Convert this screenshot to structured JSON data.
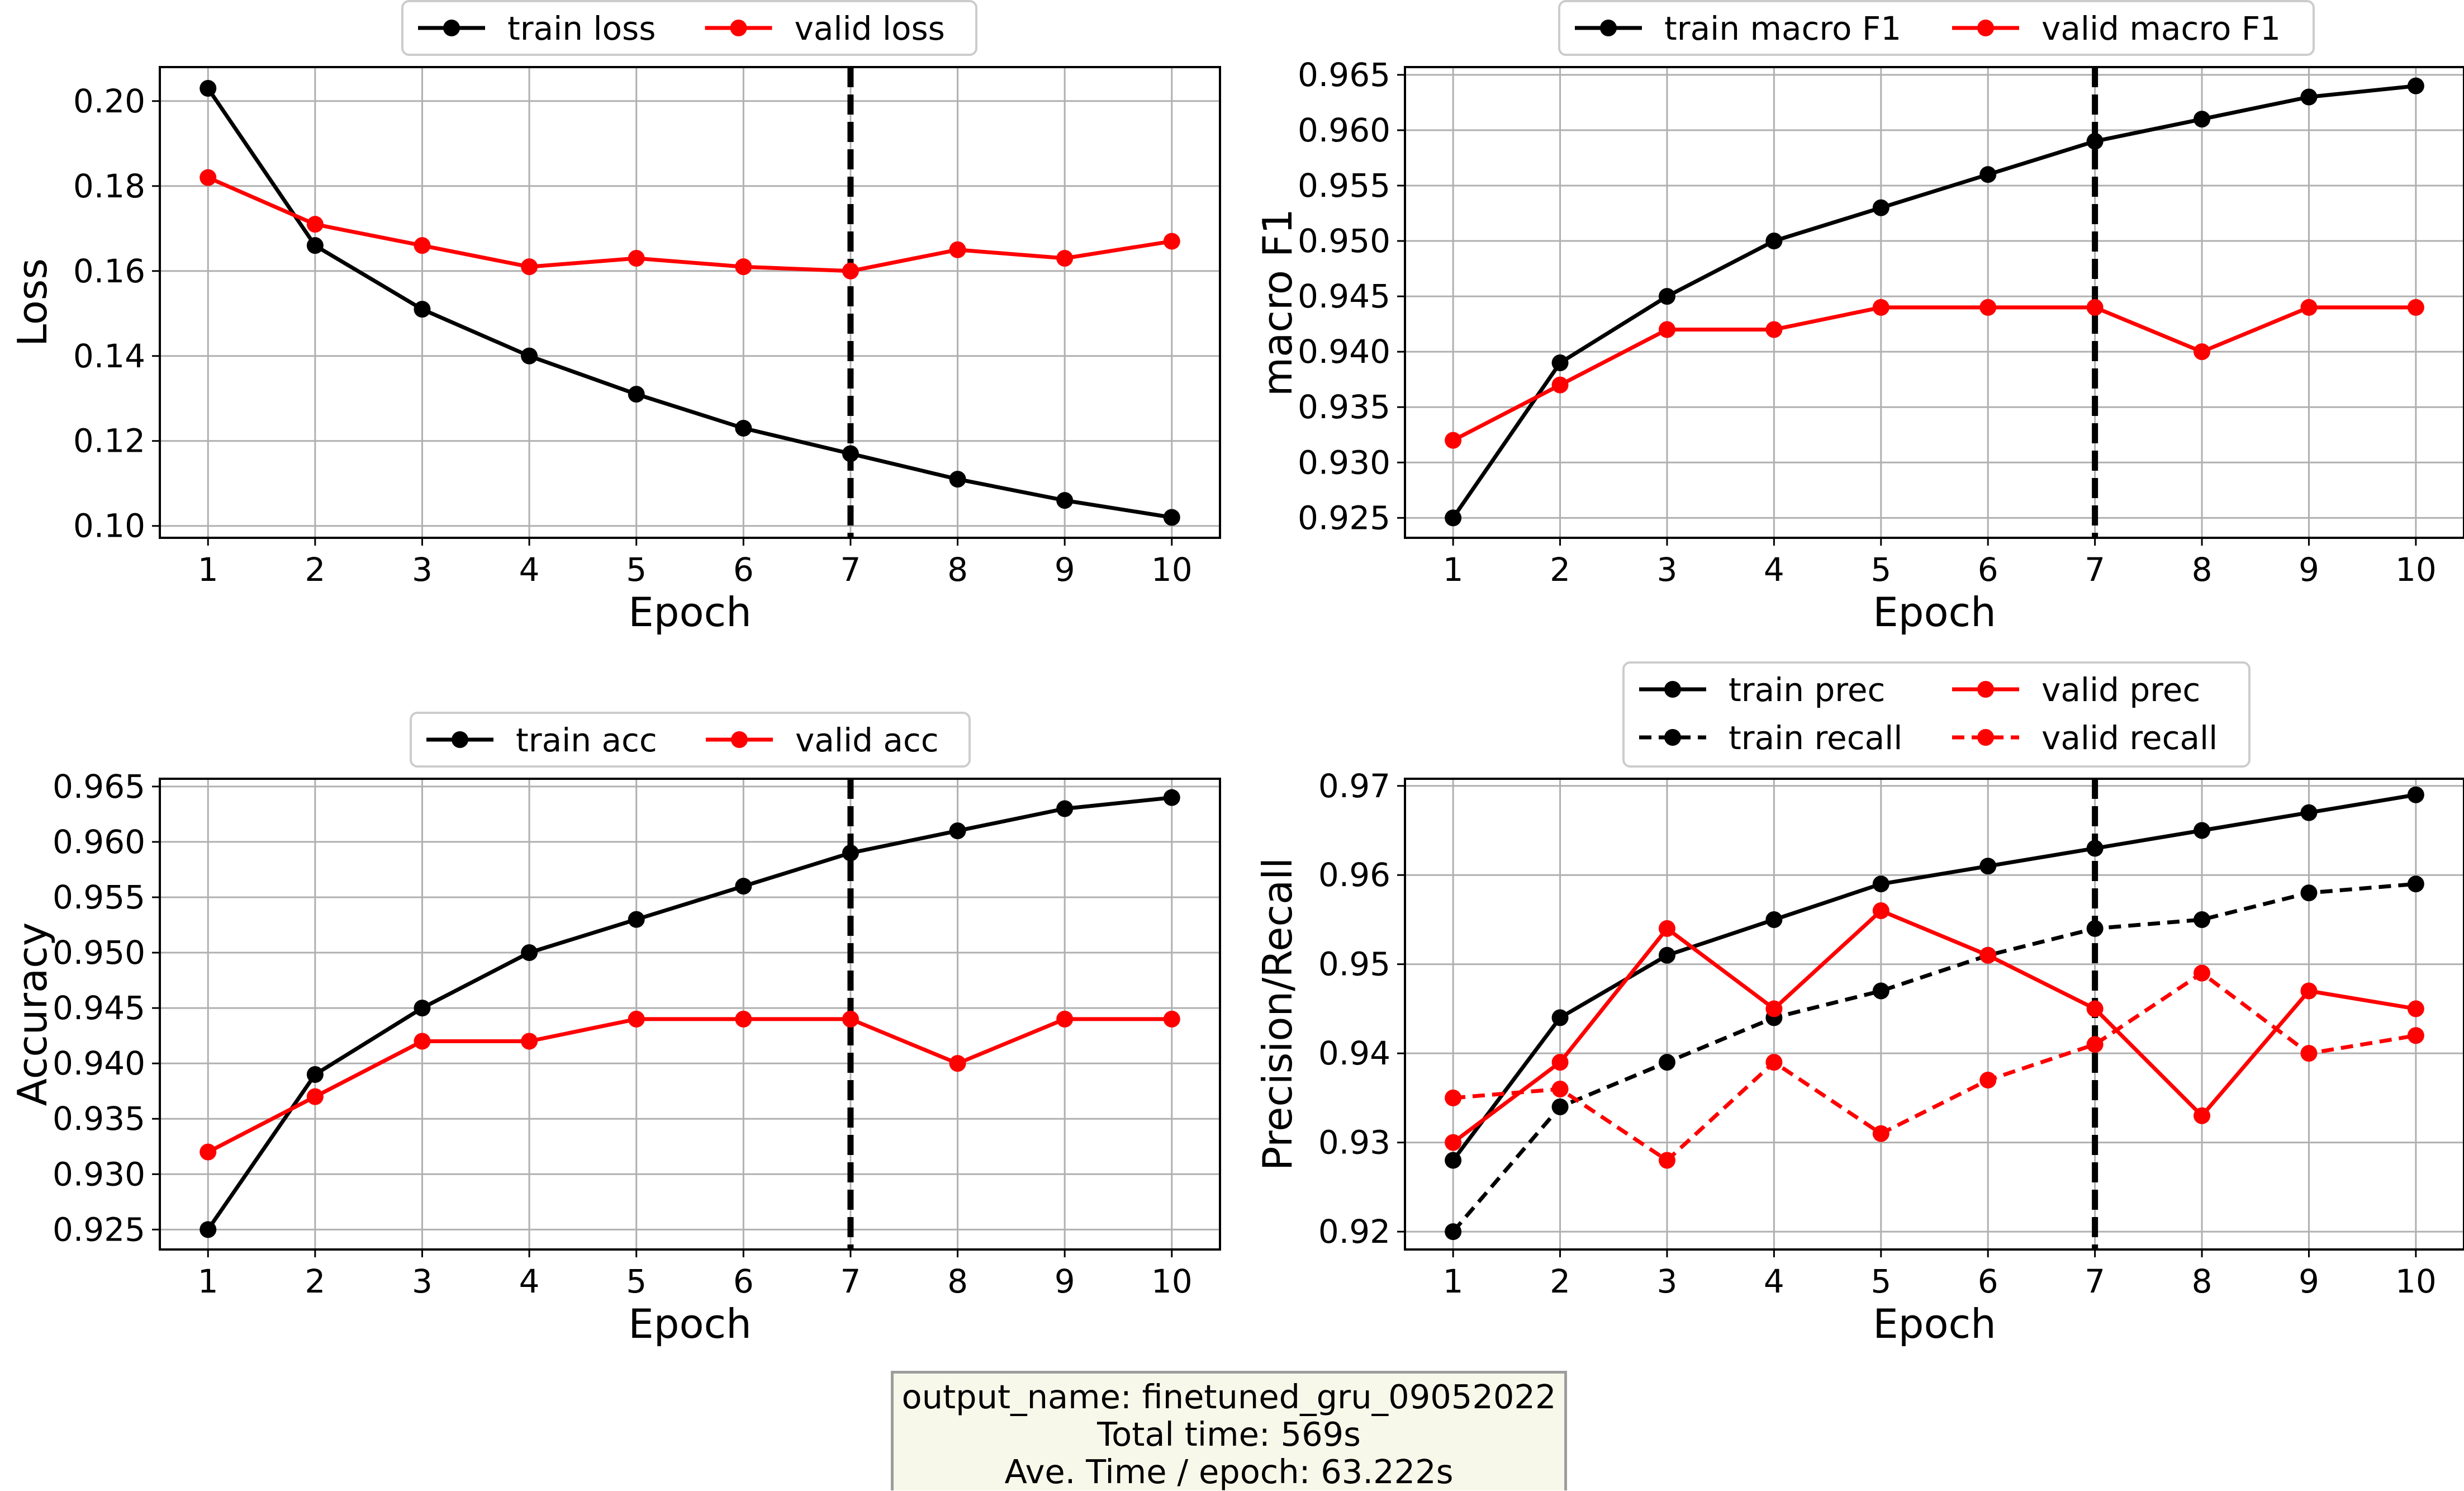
{
  "chart_data": [
    {
      "type": "line",
      "xlabel": "Epoch",
      "ylabel": "Loss",
      "x": [
        1,
        2,
        3,
        4,
        5,
        6,
        7,
        8,
        9,
        10
      ],
      "xticks": [
        "1",
        "2",
        "3",
        "4",
        "5",
        "6",
        "7",
        "8",
        "9",
        "10"
      ],
      "xlim": [
        0.55,
        10.45
      ],
      "ylim": [
        0.0972,
        0.208
      ],
      "yticks": [
        "0.10",
        "0.12",
        "0.14",
        "0.16",
        "0.18",
        "0.20"
      ],
      "grid": true,
      "legend": "top-center, outside",
      "vline": {
        "x": 7,
        "color": "#000000",
        "style": "dashed"
      },
      "series": [
        {
          "name": "train loss",
          "color": "#000000",
          "style": "solid",
          "values": [
            0.203,
            0.166,
            0.151,
            0.14,
            0.131,
            0.123,
            0.117,
            0.111,
            0.106,
            0.102
          ]
        },
        {
          "name": "valid loss",
          "color": "#ff0000",
          "style": "solid",
          "values": [
            0.182,
            0.171,
            0.166,
            0.161,
            0.163,
            0.161,
            0.16,
            0.165,
            0.163,
            0.167
          ]
        }
      ]
    },
    {
      "type": "line",
      "xlabel": "Epoch",
      "ylabel": "macro F1",
      "x": [
        1,
        2,
        3,
        4,
        5,
        6,
        7,
        8,
        9,
        10
      ],
      "xticks": [
        "1",
        "2",
        "3",
        "4",
        "5",
        "6",
        "7",
        "8",
        "9",
        "10"
      ],
      "xlim": [
        0.55,
        10.45
      ],
      "ylim": [
        0.9232,
        0.9657
      ],
      "yticks": [
        "0.925",
        "0.930",
        "0.935",
        "0.940",
        "0.945",
        "0.950",
        "0.955",
        "0.960",
        "0.965"
      ],
      "grid": true,
      "legend": "top-center, outside",
      "vline": {
        "x": 7,
        "color": "#000000",
        "style": "dashed"
      },
      "series": [
        {
          "name": "train macro F1",
          "color": "#000000",
          "style": "solid",
          "values": [
            0.925,
            0.939,
            0.945,
            0.95,
            0.953,
            0.956,
            0.959,
            0.961,
            0.963,
            0.964
          ]
        },
        {
          "name": "valid macro F1",
          "color": "#ff0000",
          "style": "solid",
          "values": [
            0.932,
            0.937,
            0.942,
            0.942,
            0.944,
            0.944,
            0.944,
            0.94,
            0.944,
            0.944
          ]
        }
      ]
    },
    {
      "type": "line",
      "xlabel": "Epoch",
      "ylabel": "Accuracy",
      "x": [
        1,
        2,
        3,
        4,
        5,
        6,
        7,
        8,
        9,
        10
      ],
      "xticks": [
        "1",
        "2",
        "3",
        "4",
        "5",
        "6",
        "7",
        "8",
        "9",
        "10"
      ],
      "xlim": [
        0.55,
        10.45
      ],
      "ylim": [
        0.9232,
        0.9657
      ],
      "yticks": [
        "0.925",
        "0.930",
        "0.935",
        "0.940",
        "0.945",
        "0.950",
        "0.955",
        "0.960",
        "0.965"
      ],
      "grid": true,
      "legend": "top-center, outside",
      "vline": {
        "x": 7,
        "color": "#000000",
        "style": "dashed"
      },
      "series": [
        {
          "name": "train acc",
          "color": "#000000",
          "style": "solid",
          "values": [
            0.925,
            0.939,
            0.945,
            0.95,
            0.953,
            0.956,
            0.959,
            0.961,
            0.963,
            0.964
          ]
        },
        {
          "name": "valid acc",
          "color": "#ff0000",
          "style": "solid",
          "values": [
            0.932,
            0.937,
            0.942,
            0.942,
            0.944,
            0.944,
            0.944,
            0.94,
            0.944,
            0.944
          ]
        }
      ]
    },
    {
      "type": "line",
      "xlabel": "Epoch",
      "ylabel": "Precision/Recall",
      "x": [
        1,
        2,
        3,
        4,
        5,
        6,
        7,
        8,
        9,
        10
      ],
      "xticks": [
        "1",
        "2",
        "3",
        "4",
        "5",
        "6",
        "7",
        "8",
        "9",
        "10"
      ],
      "xlim": [
        0.55,
        10.45
      ],
      "ylim": [
        0.918,
        0.9708
      ],
      "yticks": [
        "0.92",
        "0.93",
        "0.94",
        "0.95",
        "0.96",
        "0.97"
      ],
      "grid": true,
      "legend": "top-center, outside, 2 columns",
      "vline": {
        "x": 7,
        "color": "#000000",
        "style": "dashed"
      },
      "series": [
        {
          "name": "train prec",
          "color": "#000000",
          "style": "solid",
          "values": [
            0.928,
            0.944,
            0.951,
            0.955,
            0.959,
            0.961,
            0.963,
            0.965,
            0.967,
            0.969
          ]
        },
        {
          "name": "train recall",
          "color": "#000000",
          "style": "dashed",
          "values": [
            0.92,
            0.934,
            0.939,
            0.944,
            0.947,
            0.951,
            0.954,
            0.955,
            0.958,
            0.959
          ]
        },
        {
          "name": "valid prec",
          "color": "#ff0000",
          "style": "solid",
          "values": [
            0.93,
            0.939,
            0.954,
            0.945,
            0.956,
            0.951,
            0.945,
            0.933,
            0.947,
            0.945
          ]
        },
        {
          "name": "valid recall",
          "color": "#ff0000",
          "style": "dashed",
          "values": [
            0.935,
            0.936,
            0.928,
            0.939,
            0.931,
            0.937,
            0.941,
            0.949,
            0.94,
            0.942
          ]
        }
      ]
    }
  ],
  "info": {
    "line1": "output_name: finetuned_gru_09052022",
    "line2": "Total time: 569s",
    "line3": "Ave. Time / epoch: 63.222s"
  }
}
